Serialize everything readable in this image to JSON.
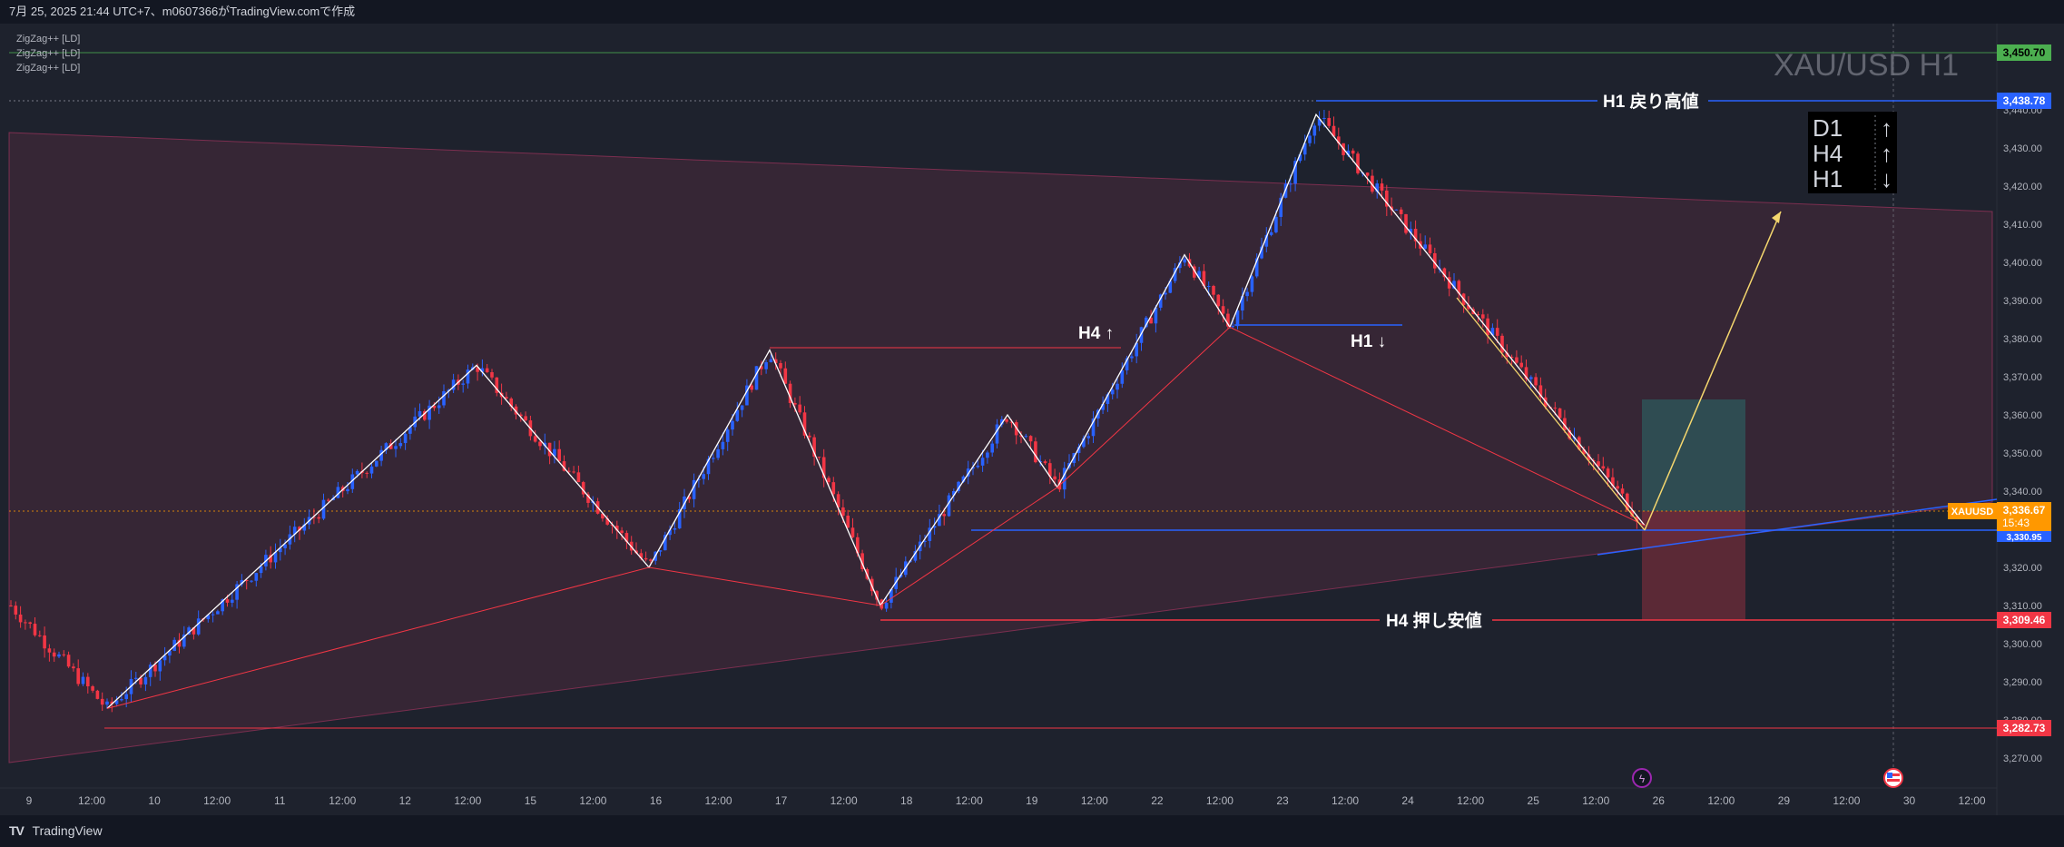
{
  "header": {
    "caption": "7月 25, 2025 21:44 UTC+7、m0607366がTradingView.comで作成"
  },
  "indicators": [
    "ZigZag++ [LD]",
    "ZigZag++ [LD]",
    "ZigZag++ [LD]"
  ],
  "watermark": "XAU/USD H1",
  "footer": {
    "brand": "TradingView",
    "logo": "TV"
  },
  "trend_panel": {
    "rows": [
      {
        "tf": "D1",
        "arrow": "↑"
      },
      {
        "tf": "H4",
        "arrow": "↑"
      },
      {
        "tf": "H1",
        "arrow": "↓"
      }
    ]
  },
  "annotations": {
    "h1_high": "H1 戻り高値",
    "h4_low": "H4 押し安値",
    "h4_up": "H4 ↑",
    "h1_down": "H1 ↓"
  },
  "price_badges": {
    "top_green": "3,450.70",
    "h1_high": "3,438.78",
    "symbol": "XAUUSD",
    "current": "3,336.67",
    "countdown": "15:43",
    "blue_line": "3,330.95",
    "h4_low": "3,309.46",
    "bottom_red": "3,282.73"
  },
  "colors": {
    "background": "#1e222d",
    "up_candle": "#2962ff",
    "down_candle": "#f23645",
    "channel_fill": "#b03a5e",
    "zigzag_white": "#ffffff",
    "zigzag_red": "#f23645",
    "blue_line": "#2962ff",
    "yellow_line": "#f5d76e",
    "green_level": "#4caf50",
    "orange": "#ff9800",
    "take_profit": "#2a6b6a",
    "stop_loss": "#8e2f3e"
  },
  "chart_data": {
    "type": "candlestick",
    "symbol": "XAU/USD",
    "timeframe": "H1",
    "ylim": [
      3265,
      3460
    ],
    "y_ticks": [
      "3,270.00",
      "3,280.00",
      "3,290.00",
      "3,300.00",
      "3,310.00",
      "3,320.00",
      "3,330.00",
      "3,340.00",
      "3,350.00",
      "3,360.00",
      "3,370.00",
      "3,380.00",
      "3,390.00",
      "3,400.00",
      "3,410.00",
      "3,420.00",
      "3,430.00",
      "3,440.00"
    ],
    "x_ticks": [
      "9",
      "12:00",
      "10",
      "12:00",
      "11",
      "12:00",
      "12",
      "12:00",
      "15",
      "12:00",
      "16",
      "12:00",
      "17",
      "12:00",
      "18",
      "12:00",
      "19",
      "12:00",
      "22",
      "12:00",
      "23",
      "12:00",
      "24",
      "12:00",
      "25",
      "12:00",
      "26",
      "12:00",
      "29",
      "12:00",
      "30",
      "12:00"
    ],
    "swing_points": [
      {
        "label": "start",
        "value": 3310
      },
      {
        "label": "low",
        "value": 3283
      },
      {
        "label": "high",
        "value": 3373
      },
      {
        "label": "low",
        "value": 3320
      },
      {
        "label": "high",
        "value": 3377
      },
      {
        "label": "low",
        "value": 3310
      },
      {
        "label": "high",
        "value": 3360
      },
      {
        "label": "low",
        "value": 3341
      },
      {
        "label": "high",
        "value": 3402
      },
      {
        "label": "low",
        "value": 3383
      },
      {
        "label": "high",
        "value": 3438.78
      },
      {
        "label": "low",
        "value": 3331
      },
      {
        "label": "last",
        "value": 3336.67
      }
    ],
    "levels": [
      {
        "name": "H1 戻り高値",
        "value": 3438.78
      },
      {
        "name": "H4 押し安値",
        "value": 3309.46
      },
      {
        "value": 3450.7
      },
      {
        "value": 3282.73
      },
      {
        "value": 3330.95
      }
    ],
    "position": {
      "entry": 3336.67,
      "target": 3364,
      "stop": 3309.46
    }
  }
}
